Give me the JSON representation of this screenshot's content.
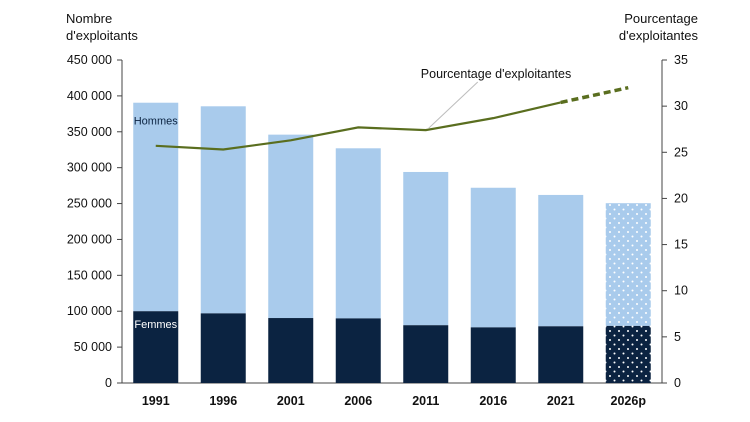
{
  "chart_data": {
    "type": "bar",
    "categories": [
      "1991",
      "1996",
      "2001",
      "2006",
      "2011",
      "2016",
      "2021",
      "2026p"
    ],
    "ylabel": "Nombre\nd'exploitants",
    "y2label": "Pourcentage\nd'exploitantes",
    "ylim": [
      0,
      450000
    ],
    "y2lim": [
      0,
      35
    ],
    "y_ticks": [
      "0",
      "50 000",
      "100 000",
      "150 000",
      "200 000",
      "250 000",
      "300 000",
      "350 000",
      "400 000",
      "450 000"
    ],
    "y2_ticks": [
      "0",
      "5",
      "10",
      "15",
      "20",
      "25",
      "30",
      "35"
    ],
    "stacked": true,
    "projected_category": "2026p",
    "series": [
      {
        "name": "Femmes",
        "color": "#0b2341",
        "values": [
          100000,
          97000,
          90500,
          90000,
          80500,
          77500,
          79000,
          79500
        ]
      },
      {
        "name": "Hommes",
        "color": "#a9cbec",
        "values": [
          290500,
          288500,
          255500,
          237000,
          213500,
          194500,
          183000,
          171000
        ]
      },
      {
        "name": "Pourcentage d'exploitantes",
        "type": "line",
        "axis": "right",
        "color": "#5a6e1f",
        "values": [
          25.7,
          25.3,
          26.3,
          27.7,
          27.4,
          28.7,
          30.4,
          32.0
        ]
      }
    ],
    "annotations": [
      {
        "text": "Pourcentage d'exploitantes",
        "points_to": "2011"
      }
    ],
    "grid": false
  }
}
